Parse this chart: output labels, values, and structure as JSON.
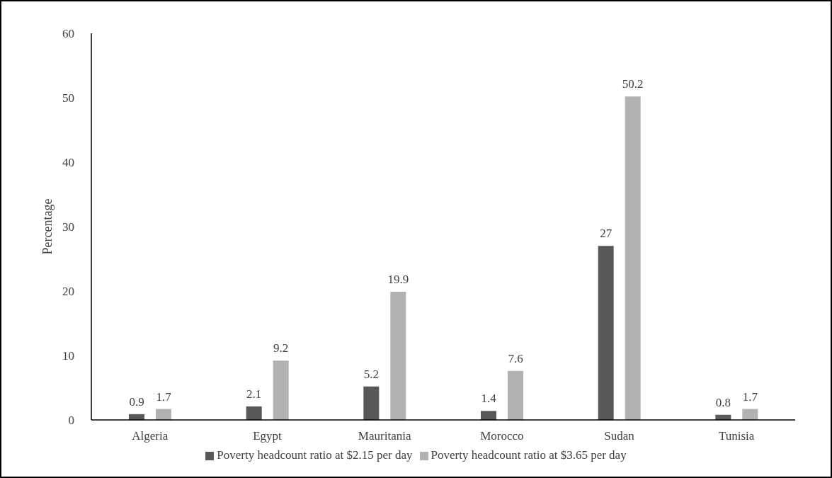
{
  "chart_data": {
    "type": "bar",
    "ylabel": "Percentage",
    "categories": [
      "Algeria",
      "Egypt",
      "Mauritania",
      "Morocco",
      "Sudan",
      "Tunisia"
    ],
    "series": [
      {
        "name": "Poverty headcount ratio at $2.15 per day",
        "color": "#595959",
        "values": [
          0.9,
          2.1,
          5.2,
          1.4,
          27,
          0.8
        ]
      },
      {
        "name": "Poverty headcount ratio at $3.65 per day",
        "color": "#b2b2b2",
        "values": [
          1.7,
          9.2,
          19.9,
          7.6,
          50.2,
          1.7
        ]
      }
    ],
    "ylim": [
      0,
      60
    ],
    "yticks": [
      0,
      10,
      20,
      30,
      40,
      50,
      60
    ],
    "grid": false,
    "legend": "bottom",
    "data_labels": true
  }
}
